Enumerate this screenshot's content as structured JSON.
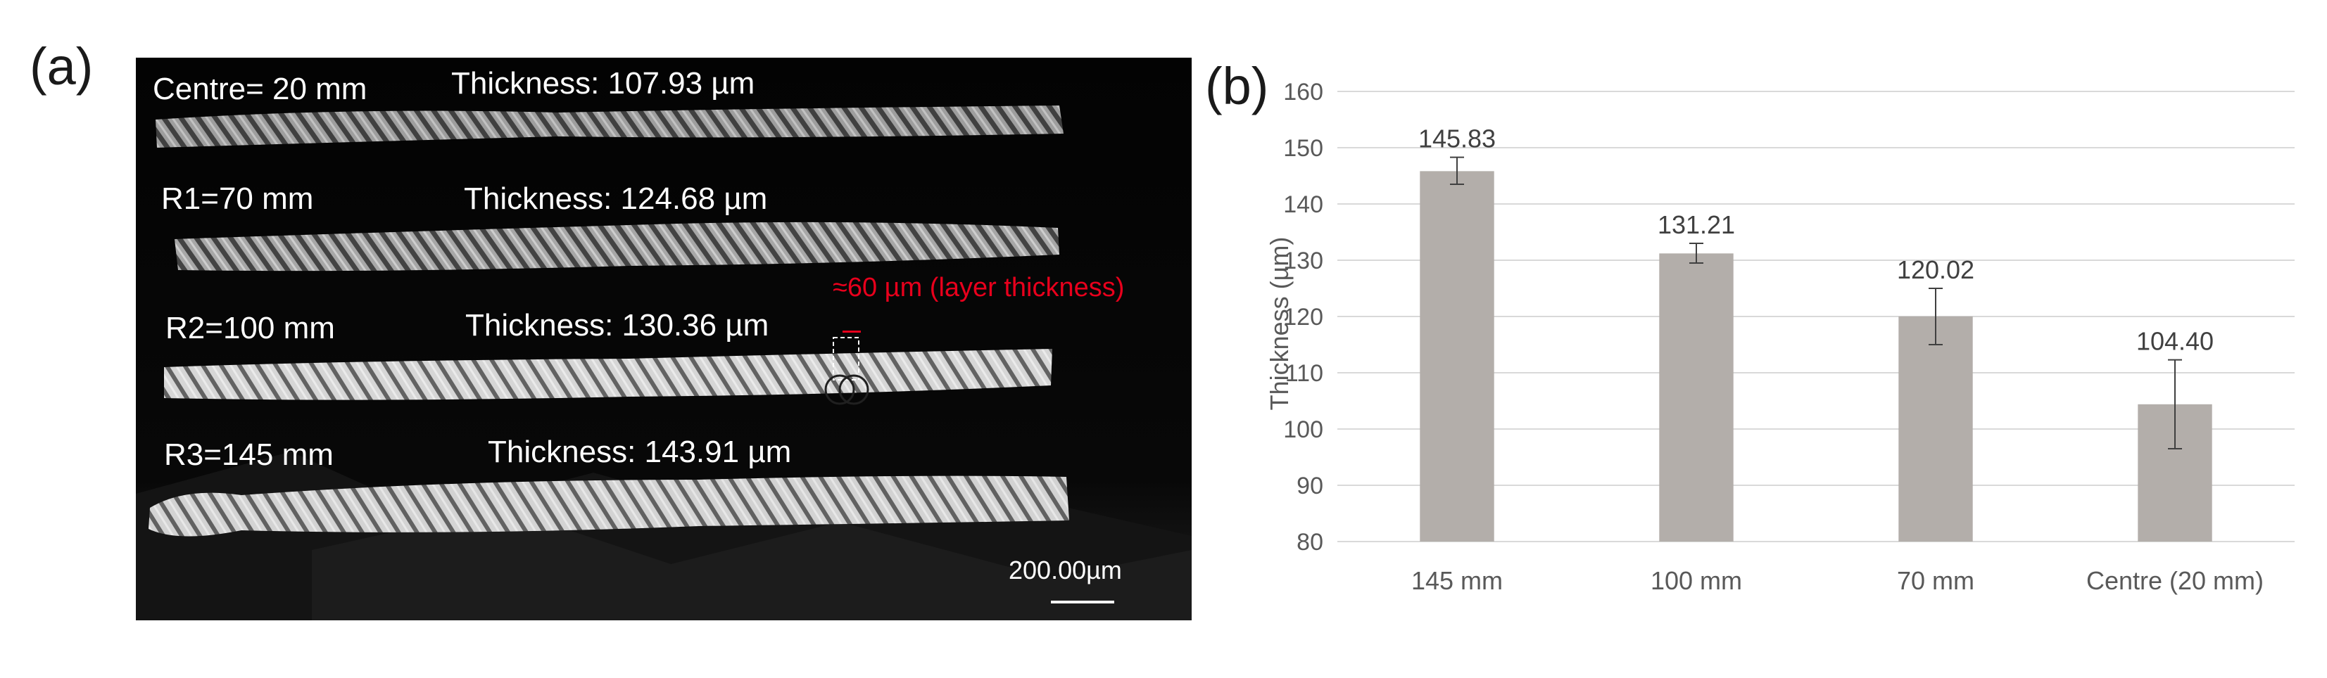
{
  "panel_a": {
    "label": "(a)",
    "strips": [
      {
        "position": "Centre= 20 mm",
        "thickness": "Thickness: 107.93 µm"
      },
      {
        "position": "R1=70 mm",
        "thickness": "Thickness: 124.68 µm"
      },
      {
        "position": "R2=100 mm",
        "thickness": "Thickness: 130.36 µm"
      },
      {
        "position": "R3=145 mm",
        "thickness": "Thickness: 143.91 µm"
      }
    ],
    "annotation": "≈60 µm (layer thickness)",
    "scale_bar": "200.00µm",
    "colors": {
      "background": "#050505",
      "annotation": "#e8001c"
    }
  },
  "panel_b": {
    "label": "(b)"
  },
  "chart_data": {
    "type": "bar",
    "categories": [
      "145 mm",
      "100 mm",
      "70 mm",
      "Centre (20 mm)"
    ],
    "values": [
      145.83,
      131.21,
      120.02,
      104.4
    ],
    "data_labels": [
      "145.83",
      "131.21",
      "120.02",
      "104.40"
    ],
    "error_bars": [
      {
        "low": 143.5,
        "high": 148.3
      },
      {
        "low": 129.5,
        "high": 133.0
      },
      {
        "low": 115.0,
        "high": 125.0
      },
      {
        "low": 96.5,
        "high": 112.3
      }
    ],
    "ylabel": "Thickness (µm)",
    "xlabel": "",
    "ylim": [
      80,
      160
    ],
    "yticks": [
      80,
      90,
      100,
      110,
      120,
      130,
      140,
      150,
      160
    ],
    "grid": "horizontal",
    "legend": "none",
    "colors": {
      "bar": "#b3aeaa",
      "grid": "#d9d9d9",
      "text": "#595959"
    }
  }
}
